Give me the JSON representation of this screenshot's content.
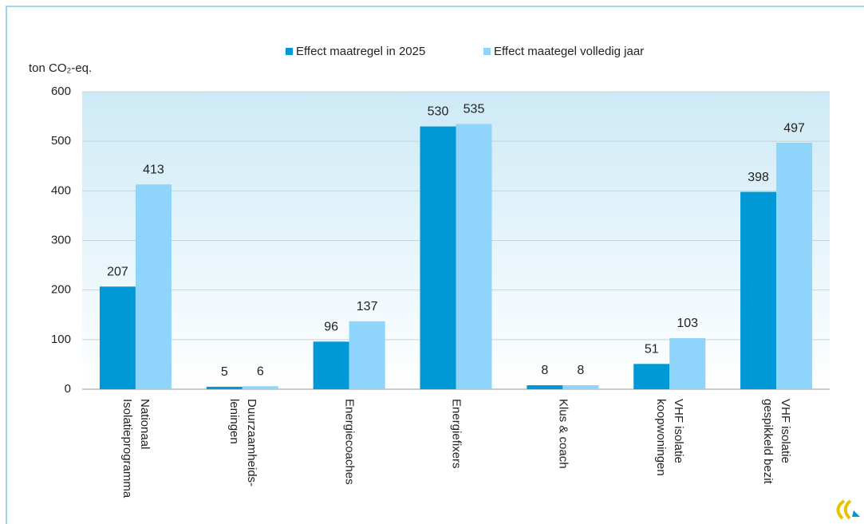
{
  "chart_data": {
    "type": "bar",
    "y_label": "ton CO₂-eq.",
    "categories": [
      [
        "Nationaal",
        "Isolatieprogramma"
      ],
      [
        "Duurzaamheids-",
        "leningen"
      ],
      [
        "Energiecoaches"
      ],
      [
        "Energiefixers"
      ],
      [
        "Klus & coach"
      ],
      [
        "VHF isolatie",
        "koopwoningen"
      ],
      [
        "VHF isolatie",
        "gespikkeld bezit"
      ]
    ],
    "series": [
      {
        "name": "Effect maatregel in 2025",
        "color": "#0098d6",
        "values": [
          207,
          5,
          96,
          530,
          8,
          51,
          398
        ]
      },
      {
        "name": "Effect maategel volledig jaar",
        "color": "#8fd4fb",
        "values": [
          413,
          6,
          137,
          535,
          8,
          103,
          497
        ]
      }
    ],
    "ylim": [
      0,
      600
    ],
    "yticks": [
      0,
      100,
      200,
      300,
      400,
      500,
      600
    ],
    "grid": true,
    "legend": "top"
  }
}
